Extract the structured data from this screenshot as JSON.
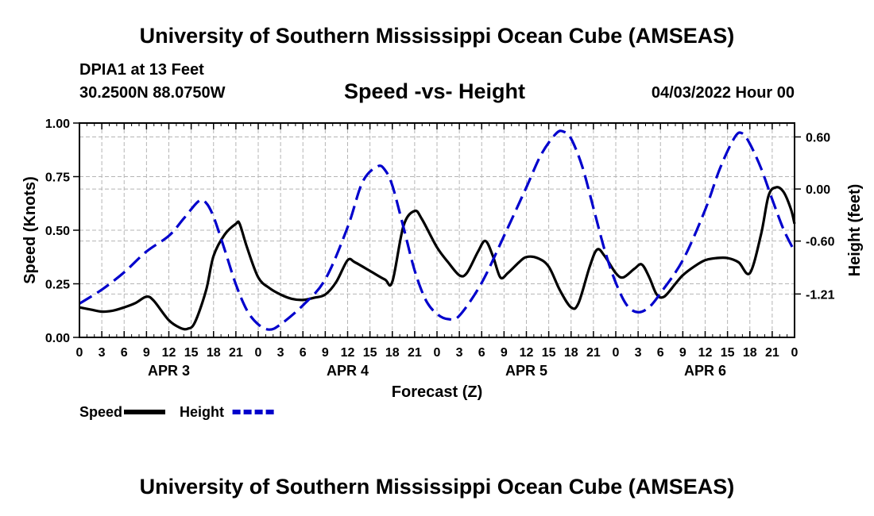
{
  "header": {
    "title": "University of Southern Mississippi Ocean Cube (AMSEAS)",
    "station": "DPIA1 at 13 Feet",
    "coords": "30.2500N  88.0750W",
    "chart_title": "Speed -vs- Height",
    "date": "04/03/2022 Hour 00"
  },
  "footer": {
    "title": "University of Southern Mississippi Ocean Cube (AMSEAS)"
  },
  "chart_data": {
    "type": "line",
    "title": "Speed -vs- Height",
    "xlabel": "Forecast (Z)",
    "ylabel": "Speed (Knots)",
    "y2label": "Height (feet)",
    "xlim": [
      0,
      96
    ],
    "ylim": [
      0,
      1.0
    ],
    "y2lim": [
      -1.71,
      0.76
    ],
    "grid": true,
    "x_ticks": [
      0,
      3,
      6,
      9,
      12,
      15,
      18,
      21,
      24,
      27,
      30,
      33,
      36,
      39,
      42,
      45,
      48,
      51,
      54,
      57,
      60,
      63,
      66,
      69,
      72,
      75,
      78,
      81,
      84,
      87,
      90,
      93,
      96
    ],
    "x_tick_labels": [
      "0",
      "3",
      "6",
      "9",
      "12",
      "15",
      "18",
      "21",
      "0",
      "3",
      "6",
      "9",
      "12",
      "15",
      "18",
      "21",
      "0",
      "3",
      "6",
      "9",
      "12",
      "15",
      "18",
      "21",
      "0",
      "3",
      "6",
      "9",
      "12",
      "15",
      "18",
      "21",
      "0"
    ],
    "day_labels": [
      {
        "x": 12,
        "label": "APR 3"
      },
      {
        "x": 36,
        "label": "APR 4"
      },
      {
        "x": 60,
        "label": "APR 5"
      },
      {
        "x": 84,
        "label": "APR 6"
      }
    ],
    "y_ticks": [
      0,
      0.25,
      0.5,
      0.75,
      1.0
    ],
    "y_tick_labels": [
      "0.00",
      "0.25",
      "0.50",
      "0.75",
      "1.00"
    ],
    "y2_ticks": [
      0.6,
      0,
      -0.6,
      -1.21
    ],
    "y2_tick_labels": [
      "0.60",
      "0.00",
      "-0.60",
      "-1.21"
    ],
    "legend": [
      {
        "label": "Speed",
        "color": "#000000",
        "style": "solid"
      },
      {
        "label": "Height",
        "color": "#0000cc",
        "style": "dashed"
      }
    ],
    "series": [
      {
        "name": "Speed",
        "axis": "left",
        "color": "#000000",
        "points": [
          [
            0,
            0.14
          ],
          [
            1.5,
            0.13
          ],
          [
            3,
            0.12
          ],
          [
            4.5,
            0.125
          ],
          [
            6,
            0.14
          ],
          [
            7.5,
            0.16
          ],
          [
            9,
            0.19
          ],
          [
            10,
            0.17
          ],
          [
            12,
            0.08
          ],
          [
            13.5,
            0.045
          ],
          [
            14.5,
            0.04
          ],
          [
            15.5,
            0.07
          ],
          [
            17,
            0.22
          ],
          [
            18,
            0.38
          ],
          [
            19.5,
            0.48
          ],
          [
            21,
            0.53
          ],
          [
            21.5,
            0.53
          ],
          [
            22.5,
            0.42
          ],
          [
            24,
            0.28
          ],
          [
            25.5,
            0.23
          ],
          [
            27,
            0.2
          ],
          [
            28.5,
            0.18
          ],
          [
            30,
            0.175
          ],
          [
            31.5,
            0.185
          ],
          [
            33,
            0.2
          ],
          [
            34.5,
            0.26
          ],
          [
            36,
            0.36
          ],
          [
            37,
            0.35
          ],
          [
            39,
            0.31
          ],
          [
            41,
            0.27
          ],
          [
            42,
            0.26
          ],
          [
            43.5,
            0.52
          ],
          [
            45,
            0.59
          ],
          [
            46,
            0.55
          ],
          [
            48,
            0.42
          ],
          [
            49.5,
            0.35
          ],
          [
            51,
            0.29
          ],
          [
            52,
            0.3
          ],
          [
            53.5,
            0.4
          ],
          [
            54.5,
            0.45
          ],
          [
            55.5,
            0.38
          ],
          [
            56.5,
            0.28
          ],
          [
            57.5,
            0.3
          ],
          [
            59,
            0.35
          ],
          [
            60,
            0.375
          ],
          [
            61.5,
            0.37
          ],
          [
            63,
            0.33
          ],
          [
            64.5,
            0.22
          ],
          [
            66,
            0.14
          ],
          [
            67,
            0.16
          ],
          [
            68.5,
            0.33
          ],
          [
            69.5,
            0.41
          ],
          [
            70.5,
            0.38
          ],
          [
            72,
            0.3
          ],
          [
            73,
            0.28
          ],
          [
            74.5,
            0.32
          ],
          [
            75.5,
            0.34
          ],
          [
            76.5,
            0.28
          ],
          [
            77.5,
            0.2
          ],
          [
            78.5,
            0.19
          ],
          [
            80,
            0.25
          ],
          [
            81,
            0.29
          ],
          [
            82.5,
            0.33
          ],
          [
            84,
            0.36
          ],
          [
            85.5,
            0.37
          ],
          [
            87,
            0.37
          ],
          [
            88.5,
            0.35
          ],
          [
            90,
            0.3
          ],
          [
            91.5,
            0.48
          ],
          [
            92.5,
            0.66
          ],
          [
            93.5,
            0.7
          ],
          [
            94.5,
            0.68
          ],
          [
            95.5,
            0.6
          ],
          [
            96,
            0.53
          ]
        ]
      },
      {
        "name": "Height",
        "axis": "right",
        "color": "#0000cc",
        "points": [
          [
            0,
            -1.32
          ],
          [
            3,
            -1.16
          ],
          [
            6,
            -0.96
          ],
          [
            9,
            -0.72
          ],
          [
            12,
            -0.54
          ],
          [
            14,
            -0.34
          ],
          [
            16,
            -0.14
          ],
          [
            17,
            -0.16
          ],
          [
            18,
            -0.32
          ],
          [
            19.5,
            -0.7
          ],
          [
            21,
            -1.1
          ],
          [
            22.5,
            -1.4
          ],
          [
            24,
            -1.56
          ],
          [
            25.5,
            -1.62
          ],
          [
            27,
            -1.56
          ],
          [
            30,
            -1.34
          ],
          [
            33,
            -1.04
          ],
          [
            36,
            -0.44
          ],
          [
            38,
            0.08
          ],
          [
            40,
            0.26
          ],
          [
            41,
            0.22
          ],
          [
            42,
            0.04
          ],
          [
            43.5,
            -0.44
          ],
          [
            45,
            -0.94
          ],
          [
            46.5,
            -1.28
          ],
          [
            48,
            -1.44
          ],
          [
            49.5,
            -1.5
          ],
          [
            51,
            -1.46
          ],
          [
            54,
            -1.08
          ],
          [
            57,
            -0.54
          ],
          [
            60,
            0.02
          ],
          [
            62,
            0.4
          ],
          [
            64,
            0.64
          ],
          [
            65,
            0.66
          ],
          [
            66,
            0.58
          ],
          [
            67.5,
            0.26
          ],
          [
            69,
            -0.22
          ],
          [
            70.5,
            -0.7
          ],
          [
            72,
            -1.08
          ],
          [
            73.5,
            -1.34
          ],
          [
            75,
            -1.42
          ],
          [
            76.5,
            -1.36
          ],
          [
            78,
            -1.2
          ],
          [
            81,
            -0.82
          ],
          [
            84,
            -0.24
          ],
          [
            86,
            0.24
          ],
          [
            88,
            0.6
          ],
          [
            89,
            0.64
          ],
          [
            90,
            0.52
          ],
          [
            91.5,
            0.24
          ],
          [
            93,
            -0.12
          ],
          [
            94.5,
            -0.46
          ],
          [
            96,
            -0.72
          ]
        ]
      }
    ]
  }
}
